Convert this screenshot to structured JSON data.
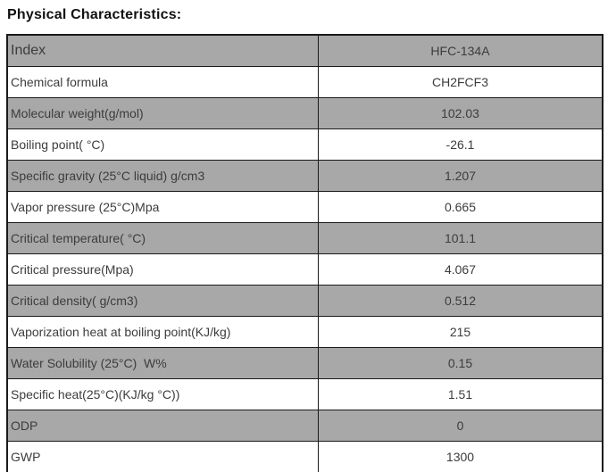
{
  "page": {
    "title": "Physical Characteristics:"
  },
  "colors": {
    "row_stripe_gray": "#a8a8a8",
    "row_stripe_white": "#ffffff",
    "border": "#1a1a1a",
    "text": "#3c3c3c",
    "title_text": "#111111"
  },
  "chart_data": {
    "type": "table",
    "title": "Physical Characteristics:",
    "columns": [
      "Index",
      "HFC-134A"
    ],
    "rows": [
      [
        "Chemical formula",
        "CH2FCF3"
      ],
      [
        "Molecular weight(g/mol)",
        "102.03"
      ],
      [
        "Boiling point( °C)",
        "-26.1"
      ],
      [
        "Specific gravity (25°C liquid) g/cm3",
        "1.207"
      ],
      [
        "Vapor pressure (25°C)Mpa",
        "0.665"
      ],
      [
        "Critical temperature( °C)",
        "101.1"
      ],
      [
        "Critical pressure(Mpa)",
        "4.067"
      ],
      [
        "Critical density( g/cm3)",
        "0.512"
      ],
      [
        "Vaporization heat at boiling point(KJ/kg)",
        "215"
      ],
      [
        "Water Solubility (25°C)  W%",
        "0.15"
      ],
      [
        "Specific heat(25°C)(KJ/kg °C))",
        "1.51"
      ],
      [
        "ODP",
        "0"
      ],
      [
        "GWP",
        "1300"
      ]
    ]
  },
  "table": {
    "rows": [
      {
        "label": "Index",
        "value": "HFC-134A"
      },
      {
        "label": "Chemical formula",
        "value": "CH2FCF3"
      },
      {
        "label": "Molecular weight(g/mol)",
        "value": "102.03"
      },
      {
        "label": "Boiling point( °C)",
        "value": "-26.1"
      },
      {
        "label": "Specific gravity (25°C liquid) g/cm3",
        "value": "1.207"
      },
      {
        "label": "Vapor pressure (25°C)Mpa",
        "value": "0.665"
      },
      {
        "label": "Critical temperature( °C)",
        "value": "101.1"
      },
      {
        "label": "Critical pressure(Mpa)",
        "value": "4.067"
      },
      {
        "label": "Critical density( g/cm3)",
        "value": "0.512"
      },
      {
        "label": "Vaporization heat at boiling point(KJ/kg)",
        "value": "215"
      },
      {
        "label": "Water Solubility (25°C)  W%",
        "value": "0.15"
      },
      {
        "label": "Specific heat(25°C)(KJ/kg °C))",
        "value": "1.51"
      },
      {
        "label": "ODP",
        "value": "0"
      },
      {
        "label": "GWP",
        "value": "1300"
      }
    ]
  }
}
